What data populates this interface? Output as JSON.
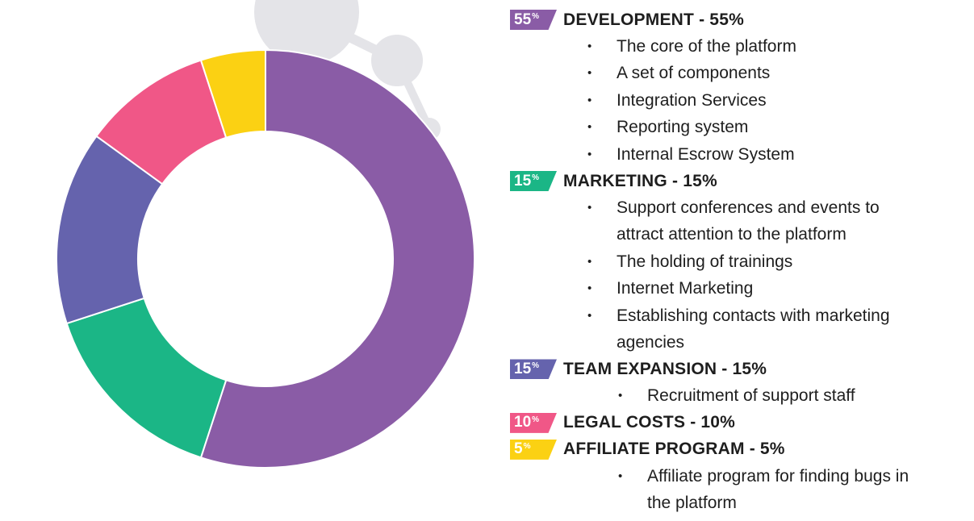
{
  "chart_data": {
    "type": "pie",
    "categories": [
      "DEVELOPMENT",
      "MARKETING",
      "TEAM EXPANSION",
      "LEGAL COSTS",
      "AFFILIATE PROGRAM"
    ],
    "values": [
      55,
      15,
      15,
      10,
      5
    ],
    "colors": [
      "#8a5ca6",
      "#1bb686",
      "#6563ad",
      "#f05787",
      "#fbd113"
    ]
  },
  "legend": [
    {
      "badge": "55",
      "unit": "%",
      "title": "DEVELOPMENT - 55%",
      "color": "#8a5ca6",
      "items": [
        "The core of the platform",
        "A set of components",
        "Integration Services",
        "Reporting system",
        "Internal Escrow System"
      ]
    },
    {
      "badge": "15",
      "unit": "%",
      "title": "MARKETING - 15%",
      "color": "#1bb686",
      "items": [
        "Support conferences and events to attract attention to the platform",
        "The holding of trainings",
        "Internet Marketing",
        "Establishing contacts with marketing agencies"
      ]
    },
    {
      "badge": "15",
      "unit": "%",
      "title": "TEAM EXPANSION - 15%",
      "color": "#6563ad",
      "items": [
        "Recruitment of support staff"
      ]
    },
    {
      "badge": "10",
      "unit": "%",
      "title": "LEGAL COSTS - 10%",
      "color": "#f05787",
      "items": []
    },
    {
      "badge": "5",
      "unit": "%",
      "title": "AFFILIATE PROGRAM - 5%",
      "color": "#fbd113",
      "items": [
        "Affiliate program for finding bugs in the platform"
      ]
    }
  ],
  "decoration_color": "#e4e4e8"
}
